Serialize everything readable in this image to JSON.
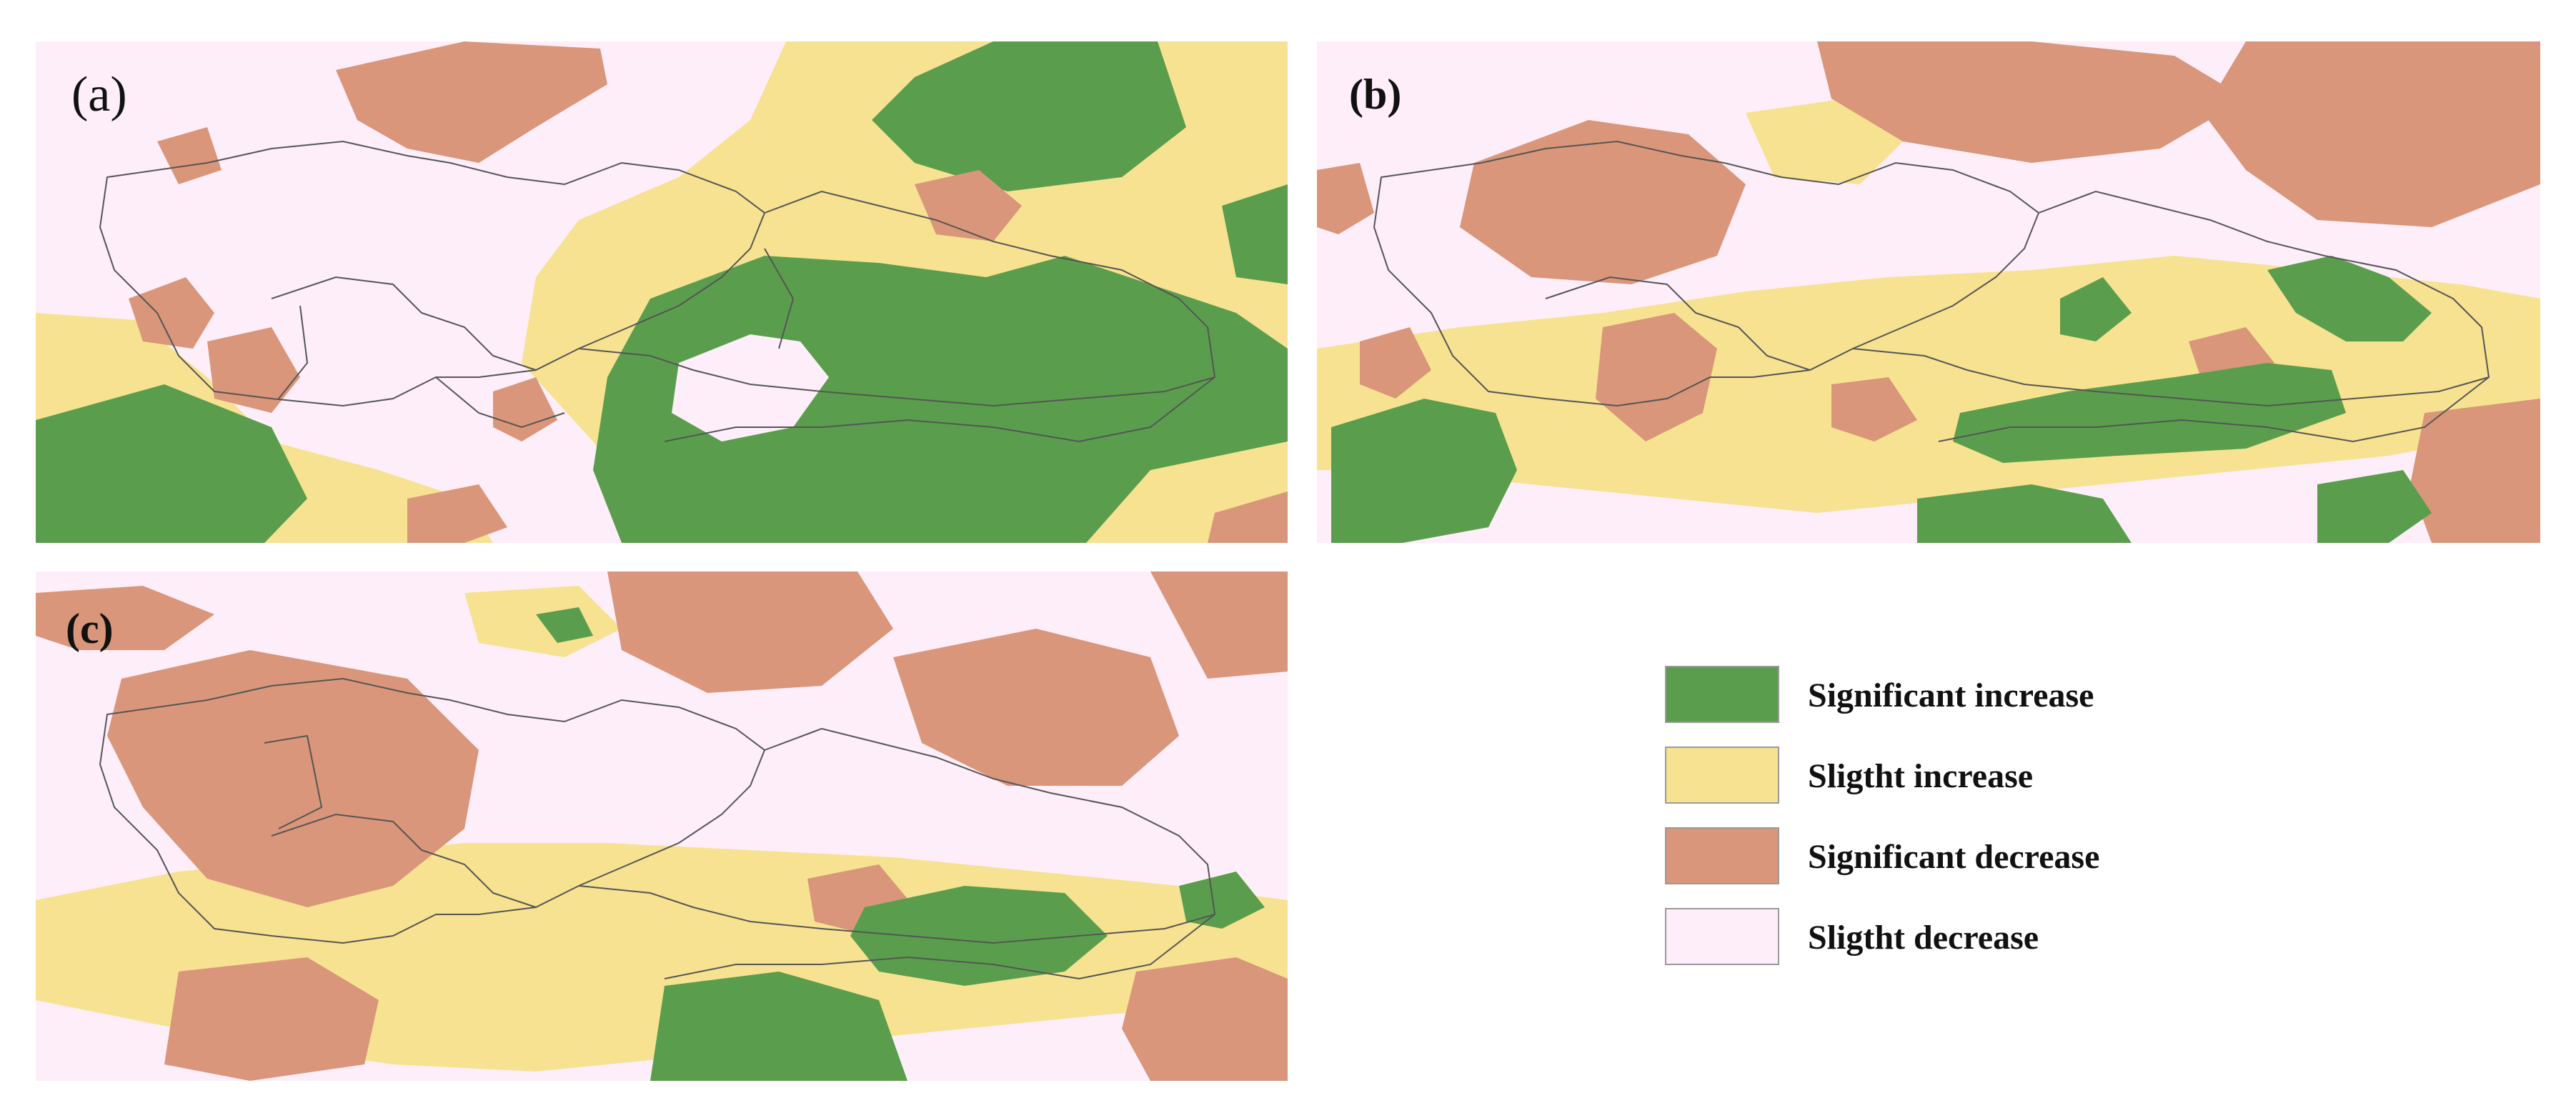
{
  "panels": [
    {
      "id": "a",
      "label": "(a)"
    },
    {
      "id": "b",
      "label": "(b)"
    },
    {
      "id": "c",
      "label": "(c)"
    }
  ],
  "legend": {
    "items": [
      {
        "label": "Significant increase",
        "color": "#5a9e4d"
      },
      {
        "label": "Sligtht increase",
        "color": "#f7e291"
      },
      {
        "label": "Significant decrease",
        "color": "#d9967a"
      },
      {
        "label": "Sligtht decrease",
        "color": "#fdeefa"
      }
    ]
  },
  "colors": {
    "significant_increase": "#5a9e4d",
    "slight_increase": "#f7e291",
    "significant_decrease": "#d9967a",
    "slight_decrease": "#fdeefa",
    "boundary": "#555555"
  }
}
